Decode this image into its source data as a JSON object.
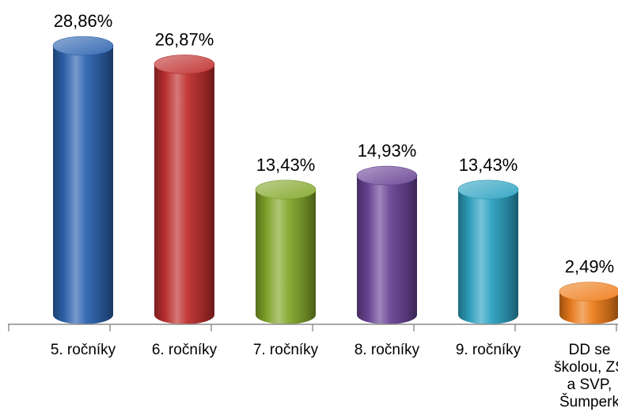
{
  "chart_data": {
    "type": "bar",
    "style": "3d-cylinder",
    "title": "",
    "xlabel": "",
    "ylabel": "",
    "grid": false,
    "legend": "none",
    "ylim": [
      0,
      28.86
    ],
    "categories": [
      [
        "5. ročníky"
      ],
      [
        "6. ročníky"
      ],
      [
        "7. ročníky"
      ],
      [
        "8. ročníky"
      ],
      [
        "9. ročníky"
      ],
      [
        "DD se",
        "školou, ZŠ",
        "a SVP,",
        "Šumperk"
      ]
    ],
    "values": [
      28.86,
      26.87,
      13.43,
      14.93,
      13.43,
      2.49
    ],
    "data_labels": [
      "28,86%",
      "26,87%",
      "13,43%",
      "14,93%",
      "13,43%",
      "2,49%"
    ],
    "colors": [
      "#2e64b0",
      "#c0302f",
      "#84a82c",
      "#6b4596",
      "#2ea3c2",
      "#ee7d1c"
    ]
  }
}
